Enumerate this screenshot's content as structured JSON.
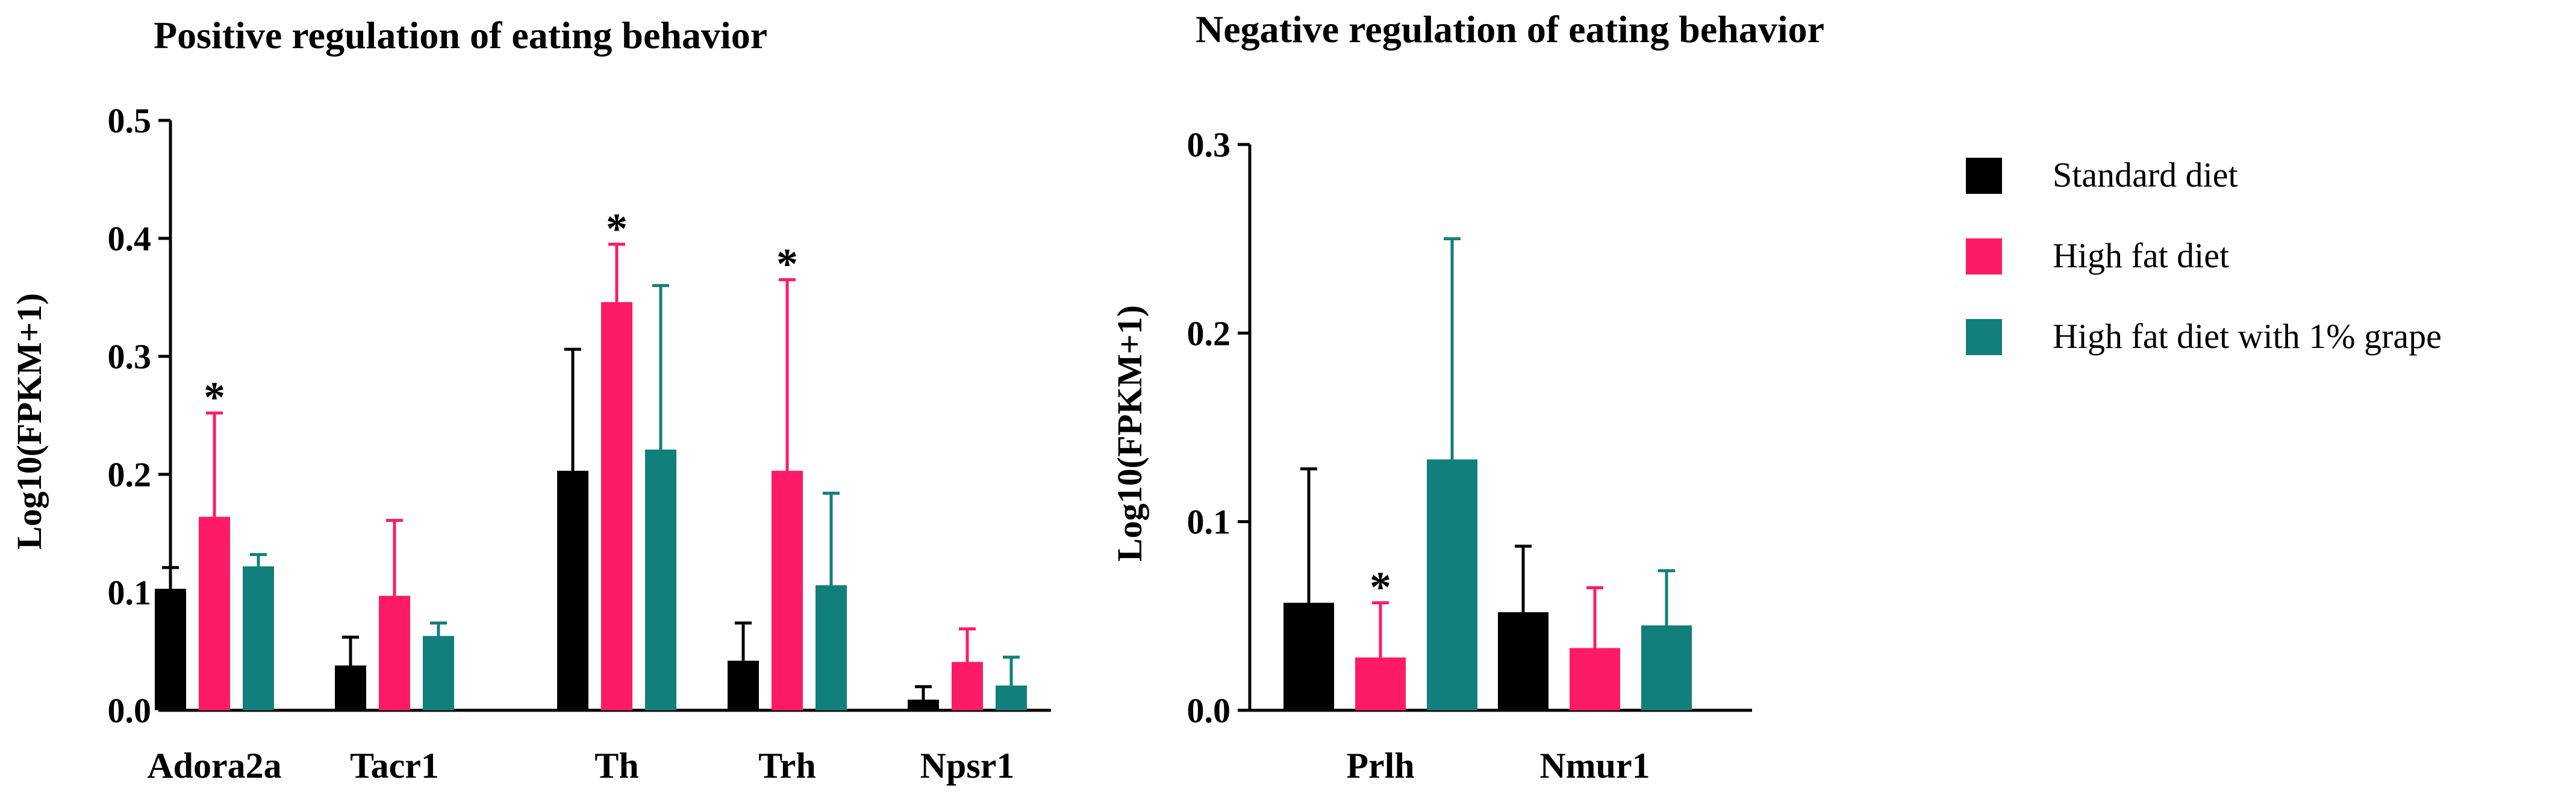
{
  "legend": [
    {
      "label": "Standard diet",
      "color": "#000000"
    },
    {
      "label": "High fat diet",
      "color": "#ff1a66"
    },
    {
      "label": "High fat diet with 1% grape",
      "color": "#117f7b"
    }
  ],
  "chart_data": [
    {
      "type": "bar",
      "title": "Positive regulation  of eating behavior",
      "xlabel": "",
      "ylabel": "Log10(FPKM+1)",
      "ylim": [
        0,
        0.5
      ],
      "yticks": [
        "0.0",
        "0.1",
        "0.2",
        "0.3",
        "0.4",
        "0.5"
      ],
      "categories": [
        "Adora2a",
        "Tacr1",
        "Th",
        "Trh",
        "Npsr1"
      ],
      "series": [
        {
          "name": "Standard diet",
          "values": [
            0.103,
            0.038,
            0.203,
            0.042,
            0.009
          ],
          "errors": [
            0.018,
            0.024,
            0.103,
            0.032,
            0.011
          ],
          "significant": [
            false,
            false,
            false,
            false,
            false
          ]
        },
        {
          "name": "High fat diet",
          "values": [
            0.164,
            0.097,
            0.346,
            0.203,
            0.041
          ],
          "errors": [
            0.088,
            0.064,
            0.049,
            0.162,
            0.028
          ],
          "significant": [
            true,
            false,
            true,
            true,
            false
          ]
        },
        {
          "name": "High fat diet with 1% grape",
          "values": [
            0.122,
            0.063,
            0.221,
            0.106,
            0.021
          ],
          "errors": [
            0.01,
            0.011,
            0.139,
            0.078,
            0.024
          ],
          "significant": [
            false,
            false,
            false,
            false,
            false
          ]
        }
      ],
      "significance_marker": "*"
    },
    {
      "type": "bar",
      "title": "Negative regulation  of eating behavior",
      "xlabel": "",
      "ylabel": "Log10(FPKM+1)",
      "ylim": [
        0,
        0.3
      ],
      "yticks": [
        "0.0",
        "0.1",
        "0.2",
        "0.3"
      ],
      "categories": [
        "Prlh",
        "Nmur1"
      ],
      "series": [
        {
          "name": "Standard diet",
          "values": [
            0.057,
            0.052
          ],
          "errors": [
            0.071,
            0.035
          ],
          "significant": [
            false,
            false
          ]
        },
        {
          "name": "High fat diet",
          "values": [
            0.028,
            0.033
          ],
          "errors": [
            0.029,
            0.032
          ],
          "significant": [
            true,
            false
          ]
        },
        {
          "name": "High fat diet with 1% grape",
          "values": [
            0.133,
            0.045
          ],
          "errors": [
            0.117,
            0.029
          ],
          "significant": [
            false,
            false
          ]
        }
      ],
      "significance_marker": "*"
    }
  ]
}
